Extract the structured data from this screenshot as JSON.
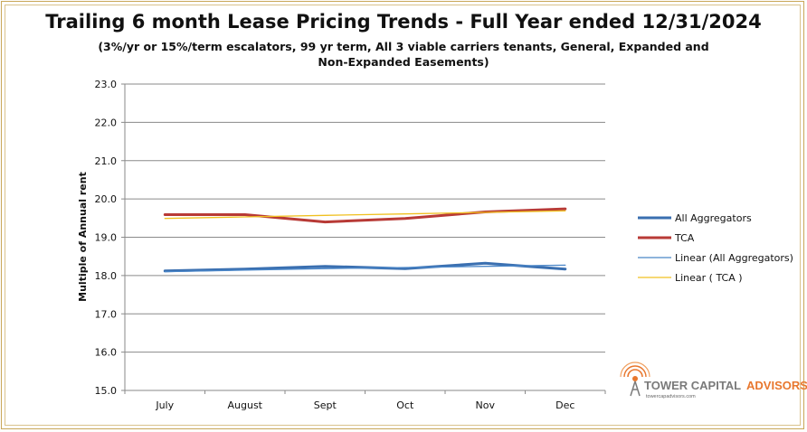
{
  "chart_data": {
    "type": "line",
    "title": "Trailing 6 month Lease Pricing Trends - Full Year ended 12/31/2024",
    "subtitle": "(3%/yr or 15%/term escalators, 99 yr term, All 3 viable carriers tenants, General, Expanded and Non-Expanded Easements)",
    "ylabel": "Multiple of Annual rent",
    "xlabel": "",
    "categories": [
      "July",
      "August",
      "Sept",
      "Oct",
      "Nov",
      "Dec"
    ],
    "ylim": [
      15.0,
      23.0
    ],
    "yticks": [
      "15.0",
      "16.0",
      "17.0",
      "18.0",
      "19.0",
      "20.0",
      "21.0",
      "22.0",
      "23.0"
    ],
    "grid": "horizontal",
    "legend_position": "right",
    "series": [
      {
        "name": "All Aggregators",
        "color": "#3a6fb0",
        "width": 3,
        "values": [
          18.12,
          18.17,
          18.24,
          18.18,
          18.32,
          18.17
        ]
      },
      {
        "name": "TCA",
        "color": "#b83a36",
        "width": 3,
        "values": [
          19.59,
          19.59,
          19.4,
          19.49,
          19.66,
          19.74
        ]
      },
      {
        "name": "Linear (All Aggregators)",
        "color": "#4a86c8",
        "width": 1.3,
        "values": [
          18.1,
          18.14,
          18.18,
          18.21,
          18.24,
          18.27
        ]
      },
      {
        "name": "Linear ( TCA )",
        "color": "#f0c020",
        "width": 1.3,
        "values": [
          19.49,
          19.53,
          19.57,
          19.61,
          19.65,
          19.69
        ]
      }
    ]
  },
  "logo": {
    "name_part1": "TOWER CAPITAL",
    "name_part2": "ADVISORS",
    "url": "towercapadvisors.com",
    "color_gray": "#7a7a7a",
    "color_orange": "#e8772e"
  }
}
